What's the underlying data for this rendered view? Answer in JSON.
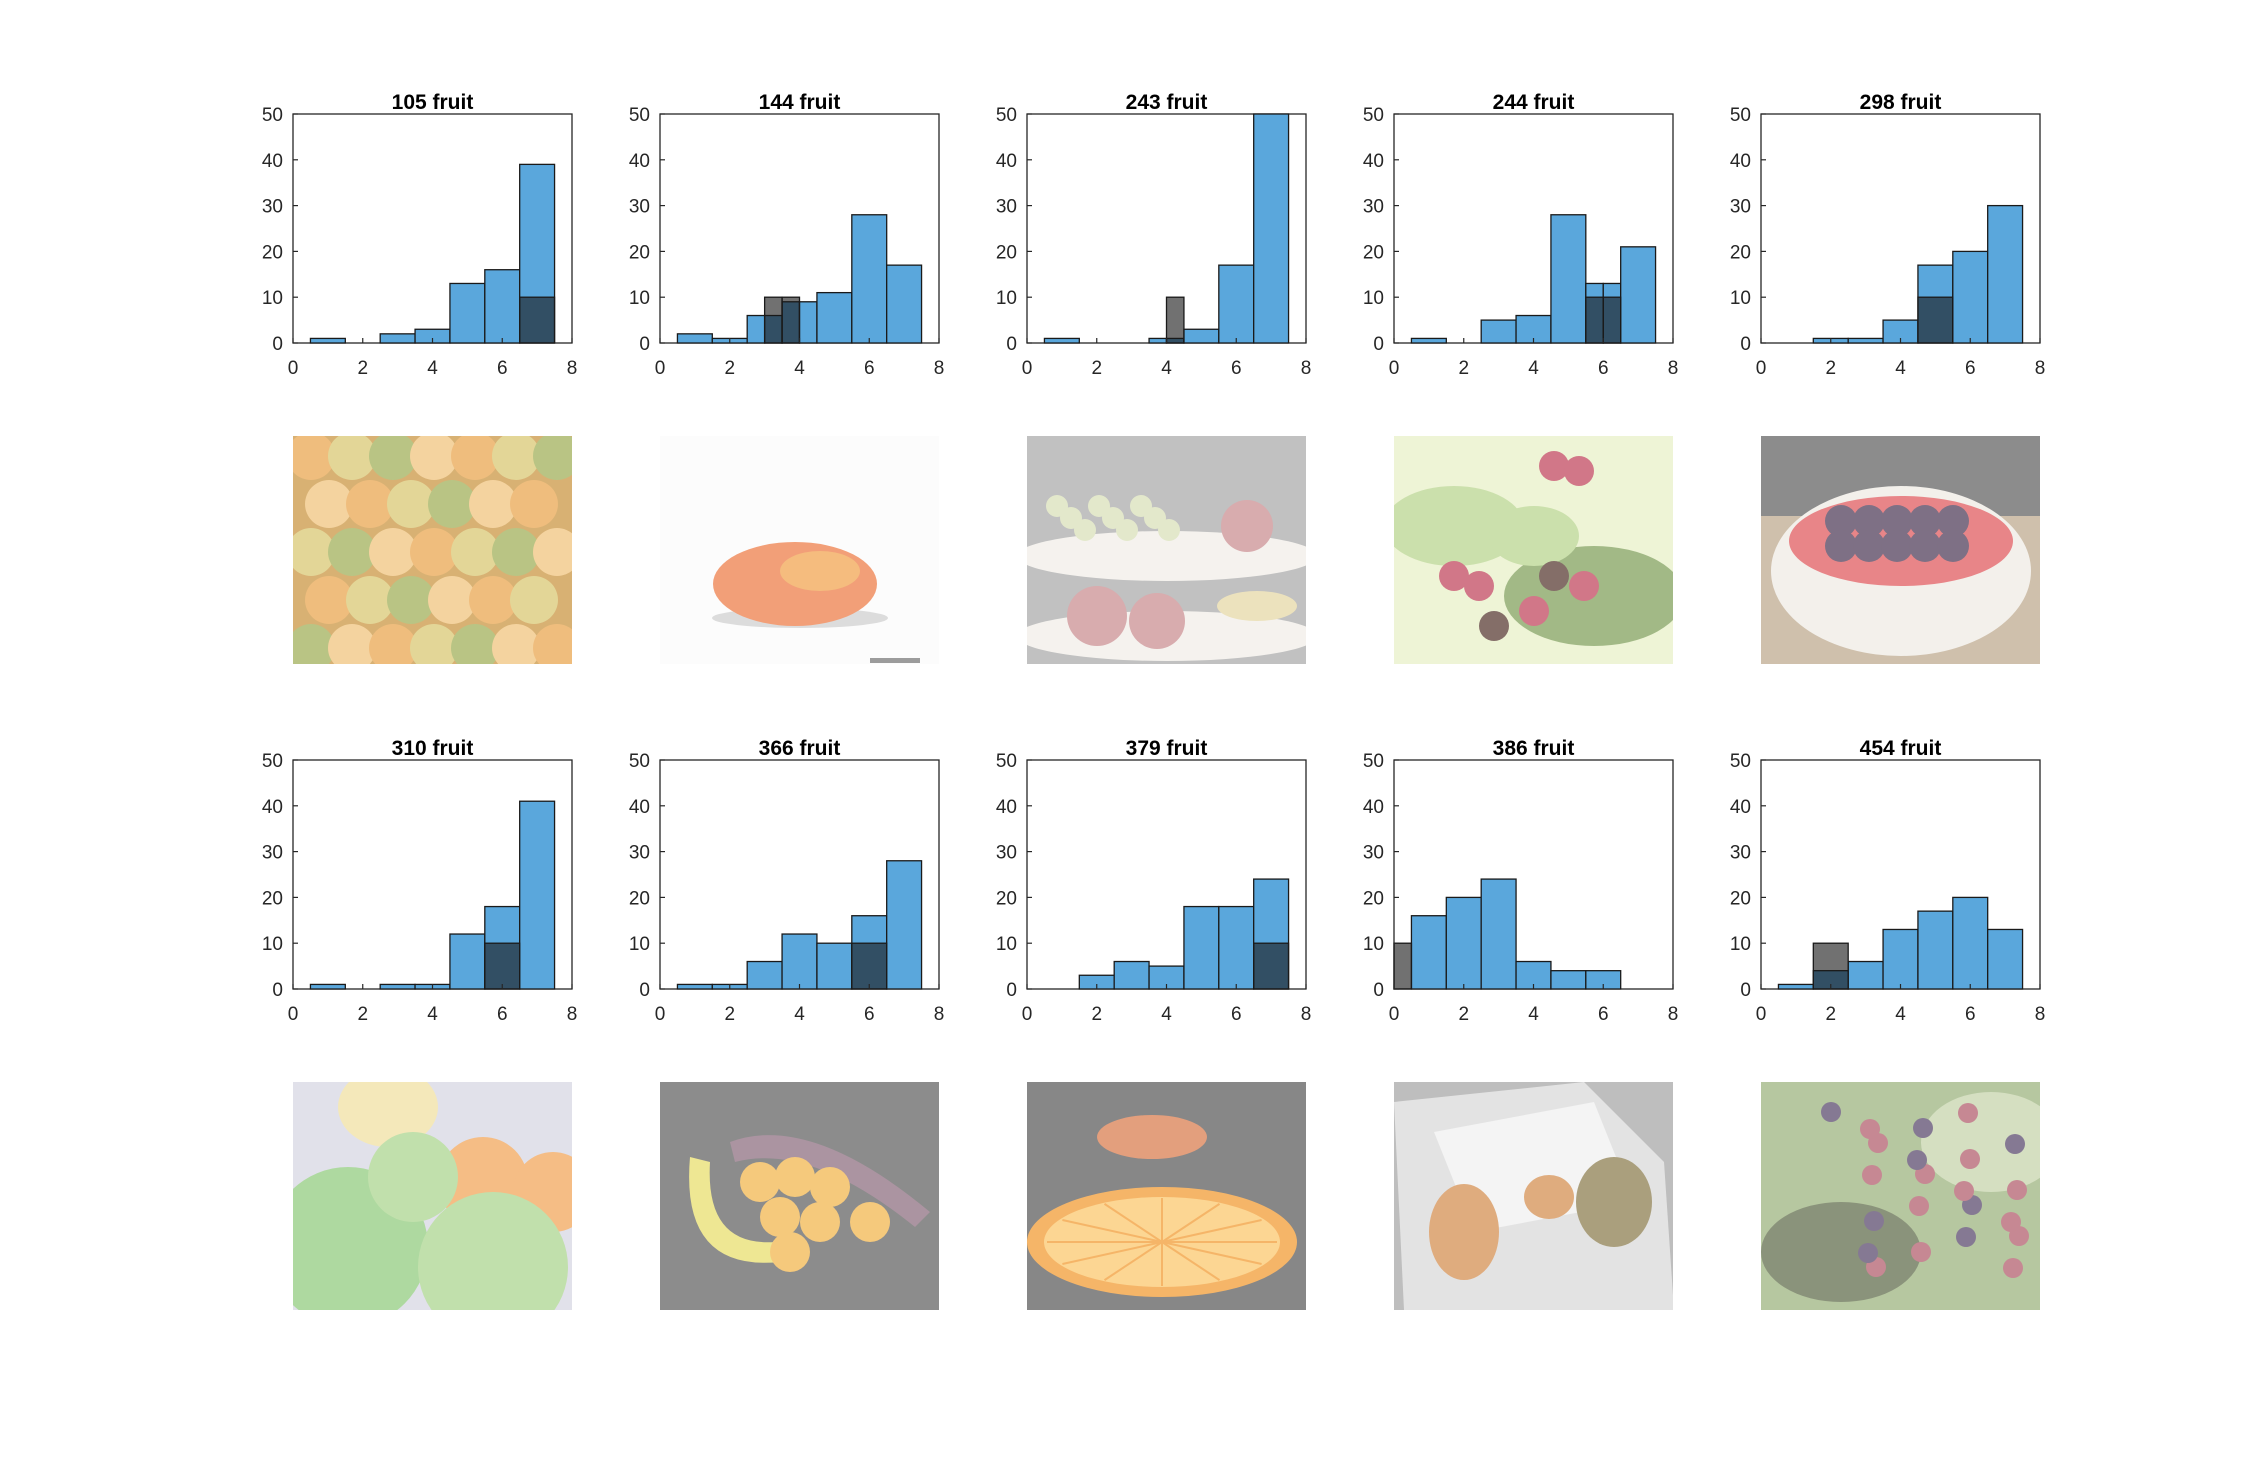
{
  "chart_data": [
    {
      "type": "bar",
      "title": "105 fruit",
      "xlim": [
        0,
        8
      ],
      "ylim": [
        0,
        50
      ],
      "xticks": [
        0,
        2,
        4,
        6,
        8
      ],
      "yticks": [
        0,
        10,
        20,
        30,
        40,
        50
      ],
      "bin_edges": [
        0.5,
        1.5,
        2.5,
        3.5,
        4.5,
        5.5,
        6.5,
        7.5
      ],
      "series": [
        {
          "color": "#5aa7dc",
          "values": [
            1,
            0,
            2,
            3,
            13,
            16,
            39
          ]
        },
        {
          "color": "#4d4d4d",
          "values": [
            0,
            0,
            0,
            0,
            0,
            0,
            10
          ]
        }
      ]
    },
    {
      "type": "bar",
      "title": "144 fruit",
      "xlim": [
        0,
        8
      ],
      "ylim": [
        0,
        50
      ],
      "xticks": [
        0,
        2,
        4,
        6,
        8
      ],
      "yticks": [
        0,
        10,
        20,
        30,
        40,
        50
      ],
      "bin_edges": [
        0.5,
        1.5,
        2.5,
        3,
        3.5,
        4,
        4.5,
        5.5,
        6.5,
        7.5
      ],
      "series": [
        {
          "color": "#5aa7dc",
          "values": [
            2,
            1,
            6,
            6,
            9,
            9,
            11,
            28,
            17
          ]
        },
        {
          "color": "#4d4d4d",
          "values": [
            0,
            0,
            0,
            10,
            10,
            0,
            0,
            0,
            0
          ]
        }
      ]
    },
    {
      "type": "bar",
      "title": "243 fruit",
      "xlim": [
        0,
        8
      ],
      "ylim": [
        0,
        50
      ],
      "xticks": [
        0,
        2,
        4,
        6,
        8
      ],
      "yticks": [
        0,
        10,
        20,
        30,
        40,
        50
      ],
      "bin_edges": [
        0.5,
        1.5,
        2.5,
        3.5,
        4,
        4.5,
        5.5,
        6.5,
        7.5
      ],
      "series": [
        {
          "color": "#5aa7dc",
          "values": [
            1,
            0,
            0,
            1,
            1,
            3,
            17,
            50
          ]
        },
        {
          "color": "#4d4d4d",
          "values": [
            0,
            0,
            0,
            0,
            10,
            0,
            0,
            0
          ]
        }
      ]
    },
    {
      "type": "bar",
      "title": "244 fruit",
      "xlim": [
        0,
        8
      ],
      "ylim": [
        0,
        50
      ],
      "xticks": [
        0,
        2,
        4,
        6,
        8
      ],
      "yticks": [
        0,
        10,
        20,
        30,
        40,
        50
      ],
      "bin_edges": [
        0.5,
        1.5,
        2.5,
        3.5,
        4.5,
        5.5,
        6,
        6.5,
        7.5
      ],
      "series": [
        {
          "color": "#5aa7dc",
          "values": [
            1,
            0,
            5,
            6,
            28,
            13,
            13,
            21
          ]
        },
        {
          "color": "#4d4d4d",
          "values": [
            0,
            0,
            0,
            0,
            0,
            10,
            10,
            0
          ]
        }
      ]
    },
    {
      "type": "bar",
      "title": "298 fruit",
      "xlim": [
        0,
        8
      ],
      "ylim": [
        0,
        50
      ],
      "xticks": [
        0,
        2,
        4,
        6,
        8
      ],
      "yticks": [
        0,
        10,
        20,
        30,
        40,
        50
      ],
      "bin_edges": [
        0.5,
        1.5,
        2.5,
        3.5,
        4.5,
        5.5,
        6.5,
        7.5
      ],
      "series": [
        {
          "color": "#5aa7dc",
          "values": [
            0,
            1,
            1,
            5,
            17,
            20,
            30
          ]
        },
        {
          "color": "#4d4d4d",
          "values": [
            0,
            0,
            0,
            0,
            10,
            0,
            0
          ]
        }
      ]
    },
    {
      "type": "bar",
      "title": "310 fruit",
      "xlim": [
        0,
        8
      ],
      "ylim": [
        0,
        50
      ],
      "xticks": [
        0,
        2,
        4,
        6,
        8
      ],
      "yticks": [
        0,
        10,
        20,
        30,
        40,
        50
      ],
      "bin_edges": [
        0.5,
        1.5,
        2.5,
        3.5,
        4.5,
        5.5,
        6.5,
        7.5
      ],
      "series": [
        {
          "color": "#5aa7dc",
          "values": [
            1,
            0,
            1,
            1,
            12,
            18,
            41
          ]
        },
        {
          "color": "#4d4d4d",
          "values": [
            0,
            0,
            0,
            0,
            0,
            10,
            0
          ]
        }
      ]
    },
    {
      "type": "bar",
      "title": "366 fruit",
      "xlim": [
        0,
        8
      ],
      "ylim": [
        0,
        50
      ],
      "xticks": [
        0,
        2,
        4,
        6,
        8
      ],
      "yticks": [
        0,
        10,
        20,
        30,
        40,
        50
      ],
      "bin_edges": [
        0.5,
        1.5,
        2.5,
        3.5,
        4.5,
        5.5,
        6.5,
        7.5
      ],
      "series": [
        {
          "color": "#5aa7dc",
          "values": [
            1,
            1,
            6,
            12,
            10,
            16,
            28
          ]
        },
        {
          "color": "#4d4d4d",
          "values": [
            0,
            0,
            0,
            0,
            0,
            10,
            0
          ]
        }
      ]
    },
    {
      "type": "bar",
      "title": "379 fruit",
      "xlim": [
        0,
        8
      ],
      "ylim": [
        0,
        50
      ],
      "xticks": [
        0,
        2,
        4,
        6,
        8
      ],
      "yticks": [
        0,
        10,
        20,
        30,
        40,
        50
      ],
      "bin_edges": [
        0.5,
        1.5,
        2.5,
        3.5,
        4.5,
        5.5,
        6.5,
        7.5
      ],
      "series": [
        {
          "color": "#5aa7dc",
          "values": [
            0,
            3,
            6,
            5,
            18,
            18,
            24
          ]
        },
        {
          "color": "#4d4d4d",
          "values": [
            0,
            0,
            0,
            0,
            0,
            0,
            10
          ]
        }
      ]
    },
    {
      "type": "bar",
      "title": "386 fruit",
      "xlim": [
        0,
        8
      ],
      "ylim": [
        0,
        50
      ],
      "xticks": [
        0,
        2,
        4,
        6,
        8
      ],
      "yticks": [
        0,
        10,
        20,
        30,
        40,
        50
      ],
      "bin_edges": [
        0,
        0.5,
        1.5,
        2.5,
        3.5,
        4.5,
        5.5,
        6.5
      ],
      "series": [
        {
          "color": "#5aa7dc",
          "values": [
            0,
            16,
            20,
            24,
            6,
            4,
            4
          ]
        },
        {
          "color": "#4d4d4d",
          "values": [
            10,
            0,
            0,
            0,
            0,
            0,
            0
          ]
        }
      ]
    },
    {
      "type": "bar",
      "title": "454 fruit",
      "xlim": [
        0,
        8
      ],
      "ylim": [
        0,
        50
      ],
      "xticks": [
        0,
        2,
        4,
        6,
        8
      ],
      "yticks": [
        0,
        10,
        20,
        30,
        40,
        50
      ],
      "bin_edges": [
        0.5,
        1.5,
        2.5,
        3.5,
        4.5,
        5.5,
        6.5,
        7.5
      ],
      "series": [
        {
          "color": "#5aa7dc",
          "values": [
            1,
            4,
            6,
            13,
            17,
            20,
            13
          ]
        },
        {
          "color": "#4d4d4d",
          "values": [
            0,
            10,
            0,
            0,
            0,
            0,
            0
          ]
        }
      ]
    }
  ],
  "photos": [
    {
      "subject": "pile of oranges, lemons and limes",
      "palette": [
        "#e9a44c",
        "#d8c770",
        "#9fae55",
        "#f0c27a",
        "#c9933e"
      ]
    },
    {
      "subject": "single tangerine on white background",
      "palette": [
        "#fbfbfb",
        "#ee7b45",
        "#f1a24d",
        "#cfcfcf"
      ]
    },
    {
      "subject": "grapes, plums and pears on a tiered plate",
      "palette": [
        "#d9e0b8",
        "#c98c8f",
        "#e5d7a4",
        "#f1eee8",
        "#a9a9a9"
      ]
    },
    {
      "subject": "blackberries on a leafy branch",
      "palette": [
        "#b7d48c",
        "#c0435a",
        "#7e9f58",
        "#e8f0c6",
        "#55362f"
      ]
    },
    {
      "subject": "bowl of blackberries, raspberries and strawberries",
      "palette": [
        "#606060",
        "#efebe4",
        "#4d3a56",
        "#e0575a",
        "#bda88c"
      ]
    },
    {
      "subject": "green apples and oranges close-up",
      "palette": [
        "#8fcb7c",
        "#aad58c",
        "#f1a457",
        "#f0e0a0",
        "#d6d6e2"
      ]
    },
    {
      "subject": "banana, plantains and tangerines on grey",
      "palette": [
        "#606060",
        "#e8de6a",
        "#f2b54a",
        "#8b6b7d"
      ]
    },
    {
      "subject": "sliced orange on grey background",
      "palette": [
        "#595959",
        "#f2992f",
        "#fbc66a",
        "#d97a4c"
      ]
    },
    {
      "subject": "papayas on white folded paper",
      "palette": [
        "#d9d9d9",
        "#a5a5a5",
        "#d38c4d",
        "#8a7b4c",
        "#f0f0f0"
      ]
    },
    {
      "subject": "blackberry cluster on branch",
      "palette": [
        "#9ab27c",
        "#5e6a48",
        "#b05a6a",
        "#57466a",
        "#c5d3aa"
      ]
    }
  ]
}
